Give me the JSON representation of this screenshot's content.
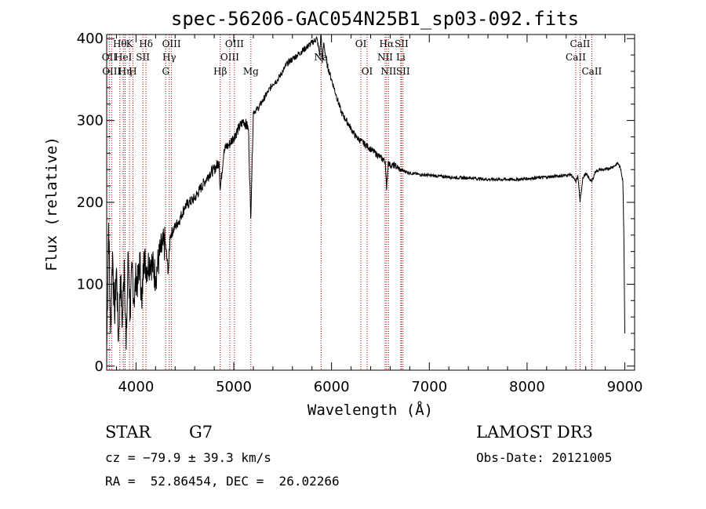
{
  "chart_data": {
    "type": "line",
    "title": "spec-56206-GAC054N25B1_sp03-092.fits",
    "xlabel": "Wavelength (Å)",
    "ylabel": "Flux (relative)",
    "xlim": [
      3700,
      9100
    ],
    "ylim": [
      -5,
      405
    ],
    "xticks": [
      4000,
      5000,
      6000,
      7000,
      8000,
      9000
    ],
    "yticks": [
      0,
      100,
      200,
      300,
      400
    ],
    "series": [
      {
        "name": "spectrum",
        "x": [
          3700,
          3720,
          3740,
          3760,
          3780,
          3800,
          3820,
          3840,
          3860,
          3880,
          3900,
          3920,
          3940,
          3960,
          3980,
          4000,
          4020,
          4040,
          4060,
          4080,
          4100,
          4150,
          4200,
          4250,
          4300,
          4330,
          4350,
          4400,
          4450,
          4500,
          4550,
          4600,
          4650,
          4700,
          4750,
          4800,
          4850,
          4861,
          4900,
          4950,
          5000,
          5050,
          5100,
          5150,
          5173,
          5200,
          5250,
          5300,
          5350,
          5400,
          5450,
          5500,
          5550,
          5600,
          5650,
          5700,
          5750,
          5800,
          5850,
          5880,
          5893,
          5905,
          5920,
          5950,
          6000,
          6050,
          6100,
          6150,
          6200,
          6250,
          6300,
          6350,
          6400,
          6450,
          6500,
          6550,
          6563,
          6580,
          6600,
          6650,
          6700,
          6750,
          6800,
          6900,
          7000,
          7100,
          7200,
          7300,
          7400,
          7500,
          7600,
          7700,
          7800,
          7900,
          8000,
          8100,
          8200,
          8300,
          8400,
          8450,
          8498,
          8520,
          8542,
          8570,
          8600,
          8662,
          8700,
          8750,
          8800,
          8850,
          8900,
          8930,
          8960,
          8980,
          8990,
          9000
        ],
        "y": [
          20,
          175,
          40,
          140,
          60,
          120,
          30,
          110,
          50,
          130,
          20,
          140,
          60,
          120,
          80,
          110,
          100,
          130,
          70,
          140,
          120,
          130,
          110,
          140,
          150,
          115,
          160,
          170,
          180,
          195,
          200,
          205,
          215,
          225,
          235,
          240,
          250,
          215,
          265,
          270,
          280,
          290,
          300,
          290,
          180,
          310,
          315,
          325,
          335,
          345,
          350,
          360,
          370,
          375,
          380,
          385,
          390,
          395,
          400,
          380,
          410,
          370,
          395,
          370,
          350,
          330,
          310,
          300,
          290,
          280,
          275,
          270,
          265,
          260,
          255,
          250,
          215,
          250,
          245,
          245,
          240,
          238,
          236,
          234,
          233,
          232,
          231,
          230,
          230,
          229,
          228,
          228,
          228,
          228,
          229,
          230,
          231,
          232,
          233,
          234,
          225,
          232,
          200,
          230,
          235,
          225,
          238,
          240,
          240,
          242,
          245,
          248,
          240,
          225,
          160,
          40
        ]
      }
    ],
    "lines": [
      {
        "x": 3835,
        "label": "Hθ",
        "row": 0
      },
      {
        "x": 3727,
        "label": "OII",
        "row": 1
      },
      {
        "x": 3750,
        "label": "OIII",
        "row": 2
      },
      {
        "x": 3870,
        "label": "HeI",
        "row": 1
      },
      {
        "x": 3889,
        "label": "Hη",
        "row": 2
      },
      {
        "x": 3934,
        "label": "K",
        "row": 0
      },
      {
        "x": 3968,
        "label": "H",
        "row": 2
      },
      {
        "x": 4070,
        "label": "SII",
        "row": 1
      },
      {
        "x": 4102,
        "label": "Hδ",
        "row": 0
      },
      {
        "x": 4304,
        "label": "G",
        "row": 2
      },
      {
        "x": 4340,
        "label": "Hγ",
        "row": 1
      },
      {
        "x": 4363,
        "label": "OIII",
        "row": 0
      },
      {
        "x": 4861,
        "label": "Hβ",
        "row": 2
      },
      {
        "x": 4959,
        "label": "OIII",
        "row": 1
      },
      {
        "x": 5007,
        "label": "OIII",
        "row": 0
      },
      {
        "x": 5175,
        "label": "Mg",
        "row": 2
      },
      {
        "x": 5893,
        "label": "Na",
        "row": 1
      },
      {
        "x": 6300,
        "label": "OI",
        "row": 0
      },
      {
        "x": 6364,
        "label": "OI",
        "row": 2
      },
      {
        "x": 6548,
        "label": "NII",
        "row": 1
      },
      {
        "x": 6563,
        "label": "Hα",
        "row": 0
      },
      {
        "x": 6583,
        "label": "NII",
        "row": 2
      },
      {
        "x": 6708,
        "label": "Li",
        "row": 1
      },
      {
        "x": 6716,
        "label": "SII",
        "row": 0
      },
      {
        "x": 6731,
        "label": "SII",
        "row": 2
      },
      {
        "x": 8498,
        "label": "CaII",
        "row": 1
      },
      {
        "x": 8542,
        "label": "CaII",
        "row": 0
      },
      {
        "x": 8662,
        "label": "CaII",
        "row": 2
      }
    ]
  },
  "info": {
    "class": "STAR",
    "subclass": "G7",
    "survey": "LAMOST DR3",
    "cz": "cz = −79.9 ± 39.3 km/s",
    "obs_date": "Obs-Date: 20121005",
    "coords": "RA =  52.86454, DEC =  26.02266"
  }
}
